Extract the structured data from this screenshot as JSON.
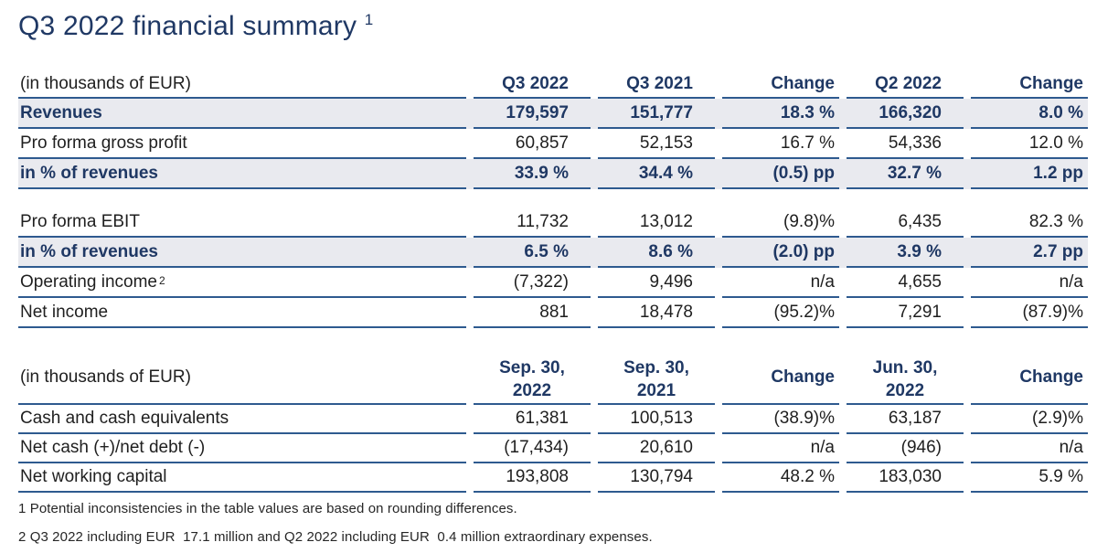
{
  "title": {
    "text": "Q3 2022 financial summary",
    "superscript": "1"
  },
  "colors": {
    "navy_text": "#1f3864",
    "rule_line": "#2e5a8f",
    "row_shade": "#e9eaef",
    "body_text": "#1f1f1f"
  },
  "table1": {
    "unit_label": "(in thousands of EUR)",
    "columns": [
      "Q3 2022",
      "Q3 2021",
      "Change",
      "Q2 2022",
      "Change"
    ],
    "rows": [
      {
        "label": "Revenues",
        "emphasis": true,
        "values": [
          "179,597",
          "151,777",
          "18.3 %",
          "166,320",
          "8.0 %"
        ]
      },
      {
        "label": "Pro forma gross profit",
        "values": [
          "60,857",
          "52,153",
          "16.7 %",
          "54,336",
          "12.0 %"
        ]
      },
      {
        "label": "in % of revenues",
        "emphasis": true,
        "values": [
          "33.9 %",
          "34.4 %",
          "(0.5) pp",
          "32.7 %",
          "1.2 pp"
        ]
      },
      {
        "label": "Pro forma EBIT",
        "values": [
          "11,732",
          "13,012",
          "(9.8)%",
          "6,435",
          "82.3 %"
        ]
      },
      {
        "label": "in % of revenues",
        "emphasis": true,
        "values": [
          "6.5 %",
          "8.6 %",
          "(2.0) pp",
          "3.9 %",
          "2.7 pp"
        ]
      },
      {
        "label": "Operating income",
        "label_superscript": "2",
        "values": [
          "(7,322)",
          "9,496",
          "n/a",
          "4,655",
          "n/a"
        ]
      },
      {
        "label": "Net income",
        "values": [
          "881",
          "18,478",
          "(95.2)%",
          "7,291",
          "(87.9)%"
        ]
      }
    ]
  },
  "table2": {
    "unit_label": "(in thousands of EUR)",
    "columns": [
      {
        "line1": "Sep. 30,",
        "line2": "2022"
      },
      {
        "line1": "Sep. 30,",
        "line2": "2021"
      },
      {
        "line1": "Change",
        "line2": ""
      },
      {
        "line1": "Jun. 30,",
        "line2": "2022"
      },
      {
        "line1": "Change",
        "line2": ""
      }
    ],
    "rows": [
      {
        "label": "Cash and cash equivalents",
        "values": [
          "61,381",
          "100,513",
          "(38.9)%",
          "63,187",
          "(2.9)%"
        ]
      },
      {
        "label": "Net cash (+)/net debt (-)",
        "values": [
          "(17,434)",
          "20,610",
          "n/a",
          "(946)",
          "n/a"
        ]
      },
      {
        "label": "Net working capital",
        "values": [
          "193,808",
          "130,794",
          "48.2 %",
          "183,030",
          "5.9 %"
        ]
      }
    ]
  },
  "footnotes": [
    "1 Potential inconsistencies in the table values are based on rounding differences.",
    "2 Q3 2022 including EUR  17.1 million and Q2 2022 including EUR  0.4 million extraordinary expenses."
  ]
}
